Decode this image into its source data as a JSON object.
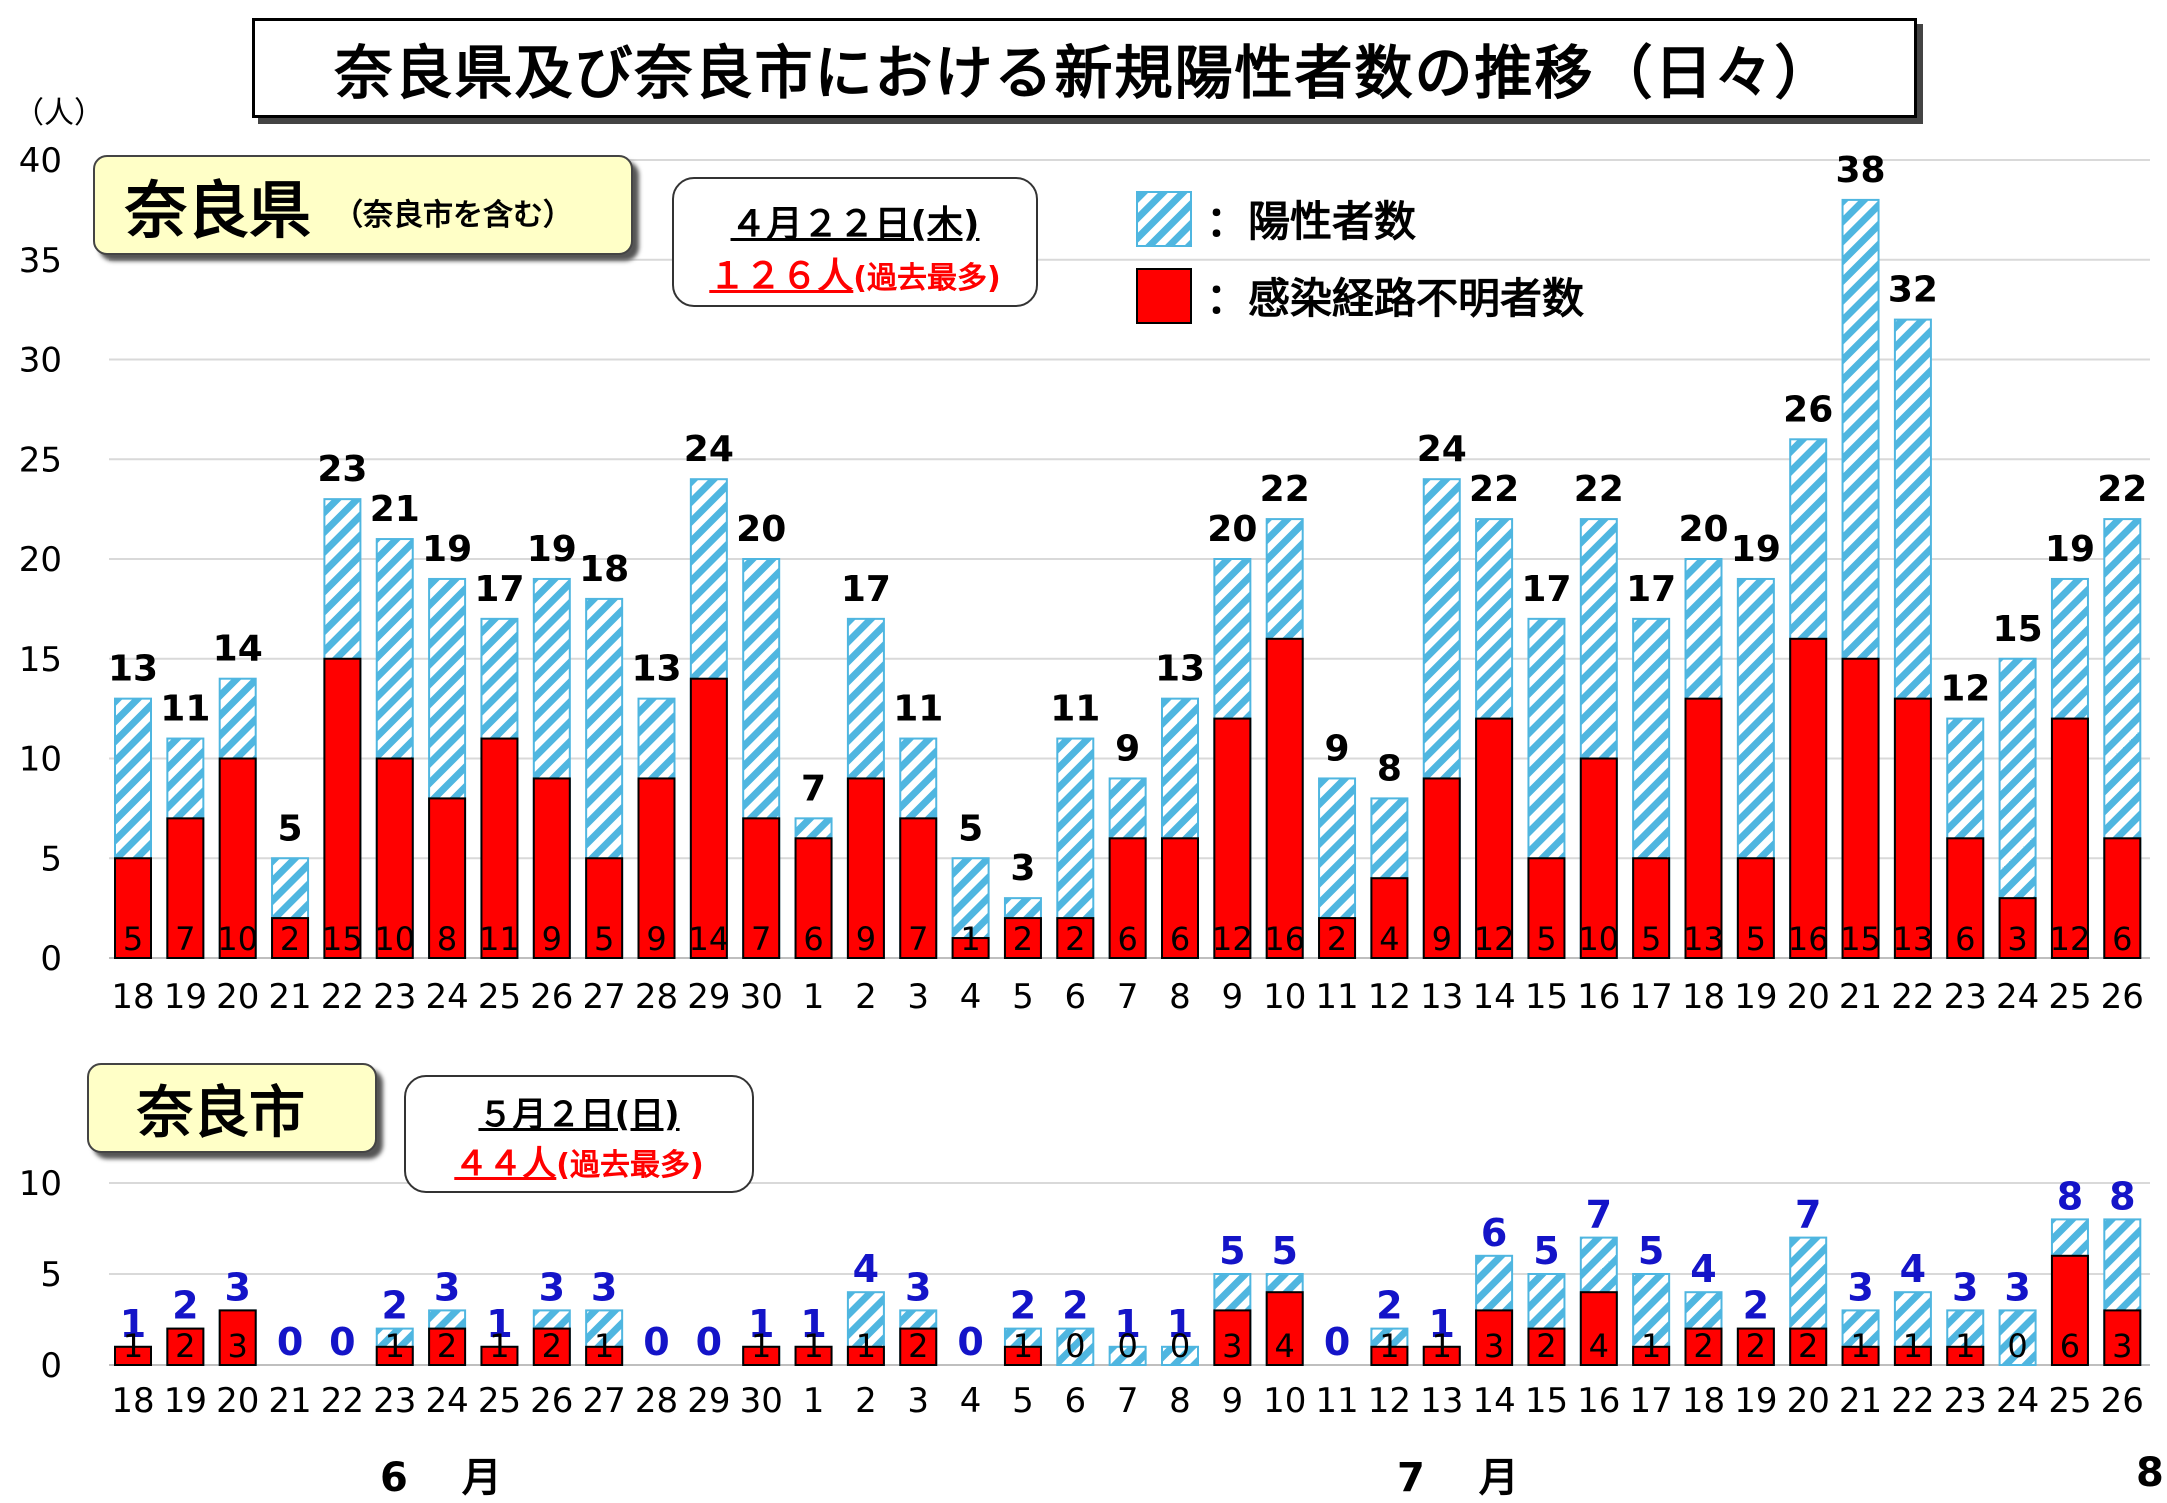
{
  "title": "奈良県及び奈良市における新規陽性者数の推移（日々）",
  "unit_label": "（人）",
  "colors": {
    "total": "#4fb6e0",
    "unknown": "#ff0000",
    "city_total_label": "#1414c8",
    "record_count": "#ff0000"
  },
  "legend": {
    "total": "：陽性者数",
    "unknown": "：感染経路不明者数"
  },
  "prefecture": {
    "label": "奈良県",
    "sublabel": "（奈良市を含む）",
    "record": {
      "date": "４月２２日(木)",
      "count": "１２６人",
      "note": "(過去最多)"
    }
  },
  "city": {
    "label": "奈良市",
    "record": {
      "date": "５月２日(日)",
      "count": "４４人",
      "note": "(過去最多)"
    }
  },
  "months": {
    "june": "6　 月",
    "july": "7　 月",
    "aug": "8"
  },
  "chart_data": [
    {
      "type": "bar",
      "name": "奈良県",
      "categories": [
        "18",
        "19",
        "20",
        "21",
        "22",
        "23",
        "24",
        "25",
        "26",
        "27",
        "28",
        "29",
        "30",
        "1",
        "2",
        "3",
        "4",
        "5",
        "6",
        "7",
        "8",
        "9",
        "10",
        "11",
        "12",
        "13",
        "14",
        "15",
        "16",
        "17",
        "18",
        "19",
        "20",
        "21",
        "22",
        "23",
        "24",
        "25",
        "26"
      ],
      "series": [
        {
          "name": "陽性者数",
          "values": [
            13,
            11,
            14,
            5,
            23,
            21,
            19,
            17,
            19,
            18,
            13,
            24,
            20,
            7,
            17,
            11,
            5,
            3,
            11,
            9,
            13,
            20,
            22,
            9,
            8,
            24,
            22,
            17,
            22,
            17,
            20,
            19,
            26,
            38,
            32,
            12,
            15,
            19,
            22
          ]
        },
        {
          "name": "感染経路不明者数",
          "values": [
            5,
            7,
            10,
            2,
            15,
            10,
            8,
            11,
            9,
            5,
            9,
            14,
            7,
            6,
            9,
            7,
            1,
            2,
            2,
            6,
            6,
            12,
            16,
            2,
            4,
            9,
            12,
            5,
            10,
            5,
            13,
            5,
            16,
            15,
            13,
            6,
            3,
            12,
            6
          ]
        }
      ],
      "yticks": [
        "0",
        "5",
        "10",
        "15",
        "20",
        "25",
        "30",
        "35",
        "40"
      ],
      "ylim": [
        0,
        40
      ]
    },
    {
      "type": "bar",
      "name": "奈良市",
      "categories": [
        "18",
        "19",
        "20",
        "21",
        "22",
        "23",
        "24",
        "25",
        "26",
        "27",
        "28",
        "29",
        "30",
        "1",
        "2",
        "3",
        "4",
        "5",
        "6",
        "7",
        "8",
        "9",
        "10",
        "11",
        "12",
        "13",
        "14",
        "15",
        "16",
        "17",
        "18",
        "19",
        "20",
        "21",
        "22",
        "23",
        "24",
        "25",
        "26"
      ],
      "series": [
        {
          "name": "陽性者数",
          "values": [
            1,
            2,
            3,
            0,
            0,
            2,
            3,
            1,
            3,
            3,
            0,
            0,
            1,
            1,
            4,
            3,
            0,
            2,
            2,
            1,
            1,
            5,
            5,
            0,
            2,
            1,
            6,
            5,
            7,
            5,
            4,
            2,
            7,
            3,
            4,
            3,
            3,
            8,
            8
          ]
        },
        {
          "name": "感染経路不明者数",
          "values": [
            1,
            2,
            3,
            null,
            null,
            1,
            2,
            1,
            2,
            1,
            null,
            null,
            1,
            1,
            1,
            2,
            null,
            1,
            0,
            0,
            0,
            3,
            4,
            null,
            1,
            1,
            3,
            2,
            4,
            1,
            2,
            2,
            2,
            1,
            1,
            1,
            0,
            6,
            3
          ]
        }
      ],
      "yticks": [
        "0",
        "5",
        "10"
      ],
      "ylim": [
        0,
        10
      ]
    }
  ]
}
